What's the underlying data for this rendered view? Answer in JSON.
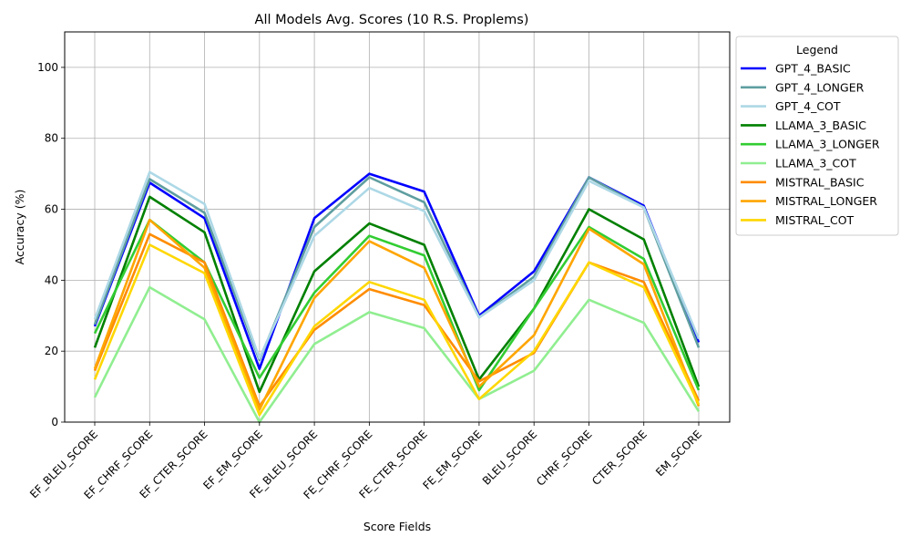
{
  "chart_data": {
    "type": "line",
    "title": "All Models Avg. Scores (10 R.S. Proplems)",
    "xlabel": "Score Fields",
    "ylabel": "Accuracy (%)",
    "ylim": [
      0,
      110
    ],
    "yticks": [
      0,
      20,
      40,
      60,
      80,
      100
    ],
    "grid": true,
    "legend_title": "Legend",
    "legend_position": "outside-top-right",
    "categories": [
      "EF_BLEU_SCORE",
      "EF_CHRF_SCORE",
      "EF_CTER_SCORE",
      "EF_EM_SCORE",
      "FE_BLEU_SCORE",
      "FE_CHRF_SCORE",
      "FE_CTER_SCORE",
      "FE_EM_SCORE",
      "BLEU_SCORE",
      "CHRF_SCORE",
      "CTER_SCORE",
      "EM_SCORE"
    ],
    "series": [
      {
        "name": "GPT_4_BASIC",
        "color": "#0000ff",
        "values": [
          27,
          67.5,
          57.5,
          15,
          57.5,
          70,
          65,
          30,
          42.5,
          69,
          61,
          22.5
        ]
      },
      {
        "name": "GPT_4_LONGER",
        "color": "#5f9ea0",
        "values": [
          27.5,
          68.5,
          59,
          17.5,
          55,
          69,
          62,
          29.5,
          41,
          69,
          60.5,
          21
        ]
      },
      {
        "name": "GPT_4_COT",
        "color": "#add8e6",
        "values": [
          29,
          70.5,
          61.5,
          18,
          52.5,
          66,
          59.5,
          29.5,
          40,
          68,
          60.5,
          23.5
        ]
      },
      {
        "name": "LLAMA_3_BASIC",
        "color": "#008000",
        "values": [
          21,
          63.5,
          53.5,
          8.5,
          42.5,
          56,
          50,
          12,
          32,
          60,
          51.5,
          10
        ]
      },
      {
        "name": "LLAMA_3_LONGER",
        "color": "#32cd32",
        "values": [
          25,
          57,
          45,
          12.5,
          36.5,
          52.5,
          47,
          9,
          32,
          55,
          46,
          9
        ]
      },
      {
        "name": "LLAMA_3_COT",
        "color": "#90ee90",
        "values": [
          7,
          38,
          29,
          0,
          22,
          31,
          26.5,
          6.5,
          14.5,
          34.5,
          28,
          3
        ]
      },
      {
        "name": "MISTRAL_BASIC",
        "color": "#ff8c00",
        "values": [
          14.5,
          53,
          45,
          4.5,
          26,
          37.5,
          33,
          11.5,
          19.5,
          45,
          39.5,
          6
        ]
      },
      {
        "name": "MISTRAL_LONGER",
        "color": "#ffa500",
        "values": [
          15,
          57,
          43.5,
          3.5,
          35,
          51,
          43.5,
          10,
          24.5,
          54.5,
          44.5,
          4.5
        ]
      },
      {
        "name": "MISTRAL_COT",
        "color": "#ffd700",
        "values": [
          12,
          50,
          42,
          2,
          27,
          39.5,
          34.5,
          6.5,
          20,
          45,
          38,
          5
        ]
      }
    ]
  }
}
